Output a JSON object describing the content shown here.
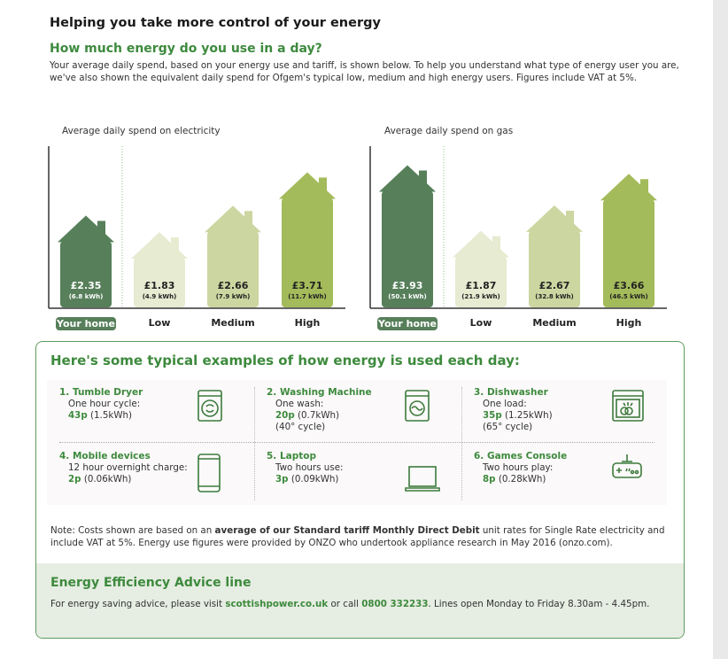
{
  "header": {
    "title": "Helping you take more control of your energy",
    "subtitle": "How much energy do you use in a day?",
    "intro": "Your average daily spend, based on your energy use and tariff, is shown below. To help you understand what type of energy user you are, we've also shown the equivalent daily spend for Ofgem's typical low, medium and high energy users. Figures include VAT at 5%."
  },
  "chart_data": [
    {
      "type": "bar",
      "title": "Average daily spend on electricity",
      "categories": [
        "Your home",
        "Low",
        "Medium",
        "High"
      ],
      "values": [
        2.35,
        1.83,
        2.66,
        3.71
      ],
      "value_labels": [
        "£2.35",
        "£1.83",
        "£2.66",
        "£3.71"
      ],
      "kwh_labels": [
        "(6.8 kWh)",
        "(4.9 kWh)",
        "(7.9 kWh)",
        "(11.7 kWh)"
      ],
      "unit": "£"
    },
    {
      "type": "bar",
      "title": "Average daily spend on gas",
      "categories": [
        "Your home",
        "Low",
        "Medium",
        "High"
      ],
      "values": [
        3.93,
        1.87,
        2.67,
        3.66
      ],
      "value_labels": [
        "£3.93",
        "£1.87",
        "£2.67",
        "£3.66"
      ],
      "kwh_labels": [
        "(50.1 kWh)",
        "(21.9 kWh)",
        "(32.8 kWh)",
        "(46.5 kWh)"
      ],
      "unit": "£"
    }
  ],
  "colors": {
    "your_home": "#567f5a",
    "low": "#e6ebd1",
    "medium": "#ccd6a0",
    "high": "#a3bb5a",
    "accent": "#3d8a3d"
  },
  "examples": {
    "title": "Here's some typical examples of how energy is used each day:",
    "items": [
      {
        "name": "1. Tumble Dryer",
        "desc": "One hour cycle:",
        "cost": "43p",
        "kwh": " (1.5kWh)",
        "extra": "",
        "icon": "tumble-dryer-icon"
      },
      {
        "name": "2. Washing Machine",
        "desc": "One wash:",
        "cost": "20p",
        "kwh": " (0.7kWh)",
        "extra": "(40° cycle)",
        "icon": "washing-machine-icon"
      },
      {
        "name": "3. Dishwasher",
        "desc": "One load:",
        "cost": "35p",
        "kwh": " (1.25kWh)",
        "extra": "(65° cycle)",
        "icon": "dishwasher-icon"
      },
      {
        "name": "4. Mobile devices",
        "desc": "12 hour overnight charge:",
        "cost": "2p",
        "kwh": " (0.06kWh)",
        "extra": "",
        "icon": "mobile-phone-icon"
      },
      {
        "name": "5. Laptop",
        "desc": "Two hours use:",
        "cost": "3p",
        "kwh": " (0.09kWh)",
        "extra": "",
        "icon": "laptop-icon"
      },
      {
        "name": "6. Games Console",
        "desc": "Two hours play:",
        "cost": "8p",
        "kwh": " (0.28kWh)",
        "extra": "",
        "icon": "games-console-icon"
      }
    ]
  },
  "note": {
    "pre": "Note: Costs shown are based on an ",
    "bold": "average of our Standard tariff Monthly Direct Debit",
    "post": " unit rates for Single Rate electricity and include VAT at 5%. Energy use figures were provided by ONZO who undertook appliance research in May 2016 (onzo.com)."
  },
  "advice": {
    "title": "Energy Efficiency Advice line",
    "pre": "For energy saving advice, please visit ",
    "link": "scottishpower.co.uk",
    "mid": " or call ",
    "phone": "0800 332233",
    "post": ". Lines open Monday to Friday 8.30am - 4.45pm."
  }
}
